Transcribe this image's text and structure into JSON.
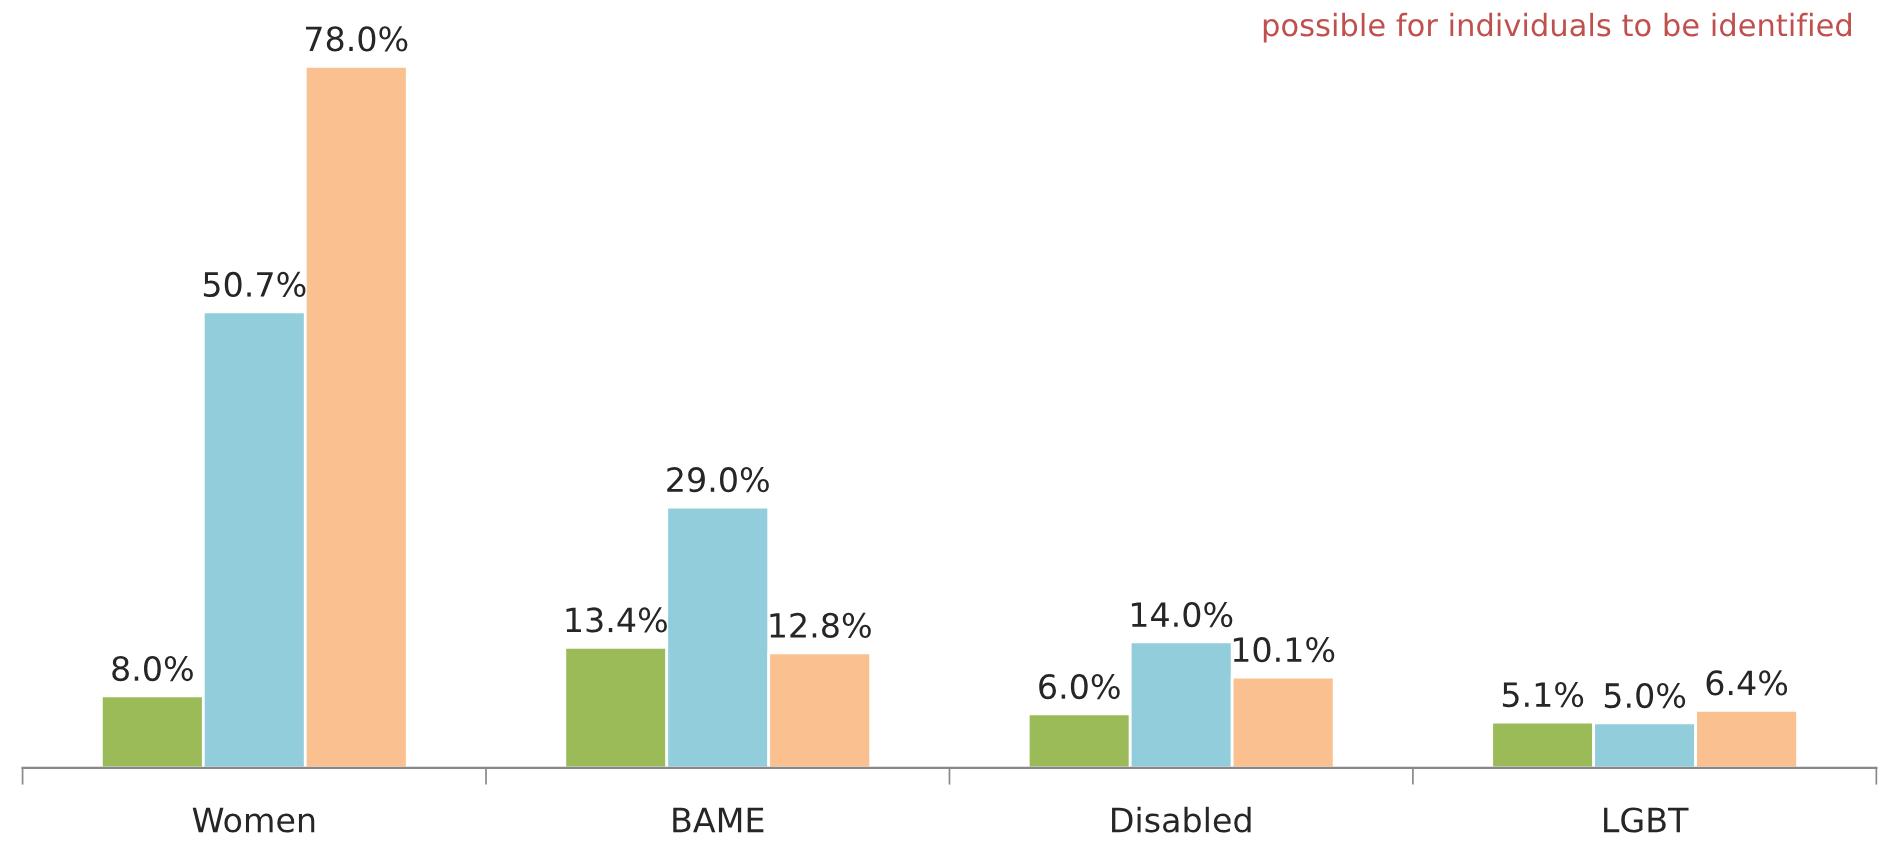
{
  "chart_data": {
    "type": "bar",
    "categories": [
      "Women",
      "BAME",
      "Disabled",
      "LGBT"
    ],
    "series": [
      {
        "color": "#9bbb59",
        "values": [
          8.0,
          13.4,
          6.0,
          5.1
        ],
        "value_labels": [
          "8.0%",
          "13.4%",
          "6.0%",
          "5.1%"
        ]
      },
      {
        "color": "#92cddc",
        "values": [
          50.7,
          29.0,
          14.0,
          5.0
        ],
        "value_labels": [
          "50.7%",
          "29.0%",
          "14.0%",
          "5.0%"
        ]
      },
      {
        "color": "#fac090",
        "values": [
          78.0,
          12.8,
          10.1,
          6.4
        ],
        "value_labels": [
          "78.0%",
          "12.8%",
          "10.1%",
          "6.4%"
        ]
      }
    ],
    "grid": false,
    "legend": false,
    "annotations": [
      "possible for individuals to be identified"
    ]
  }
}
